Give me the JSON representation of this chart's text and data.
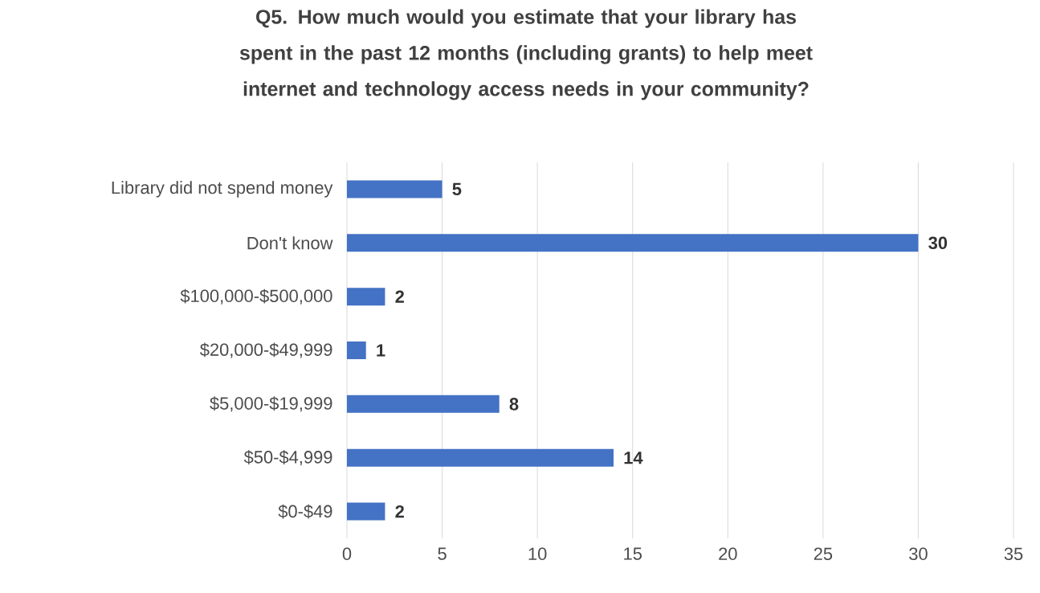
{
  "chart_data": {
    "type": "bar",
    "orientation": "horizontal",
    "title": "Q5. How much would you estimate that your library has spent in the past 12 months (including grants) to help meet internet and technology access needs in your community?",
    "categories": [
      "Library did not spend money",
      "Don't know",
      "$100,000-$500,000",
      "$20,000-$49,999",
      "$5,000-$19,999",
      "$50-$4,999",
      "$0-$49"
    ],
    "values": [
      5,
      30,
      2,
      1,
      8,
      14,
      2
    ],
    "color": "#4472c4",
    "xlim": [
      0,
      35
    ],
    "xticks": [
      0,
      5,
      10,
      15,
      20,
      25,
      30,
      35
    ],
    "grid": "x",
    "data_labels": true
  }
}
